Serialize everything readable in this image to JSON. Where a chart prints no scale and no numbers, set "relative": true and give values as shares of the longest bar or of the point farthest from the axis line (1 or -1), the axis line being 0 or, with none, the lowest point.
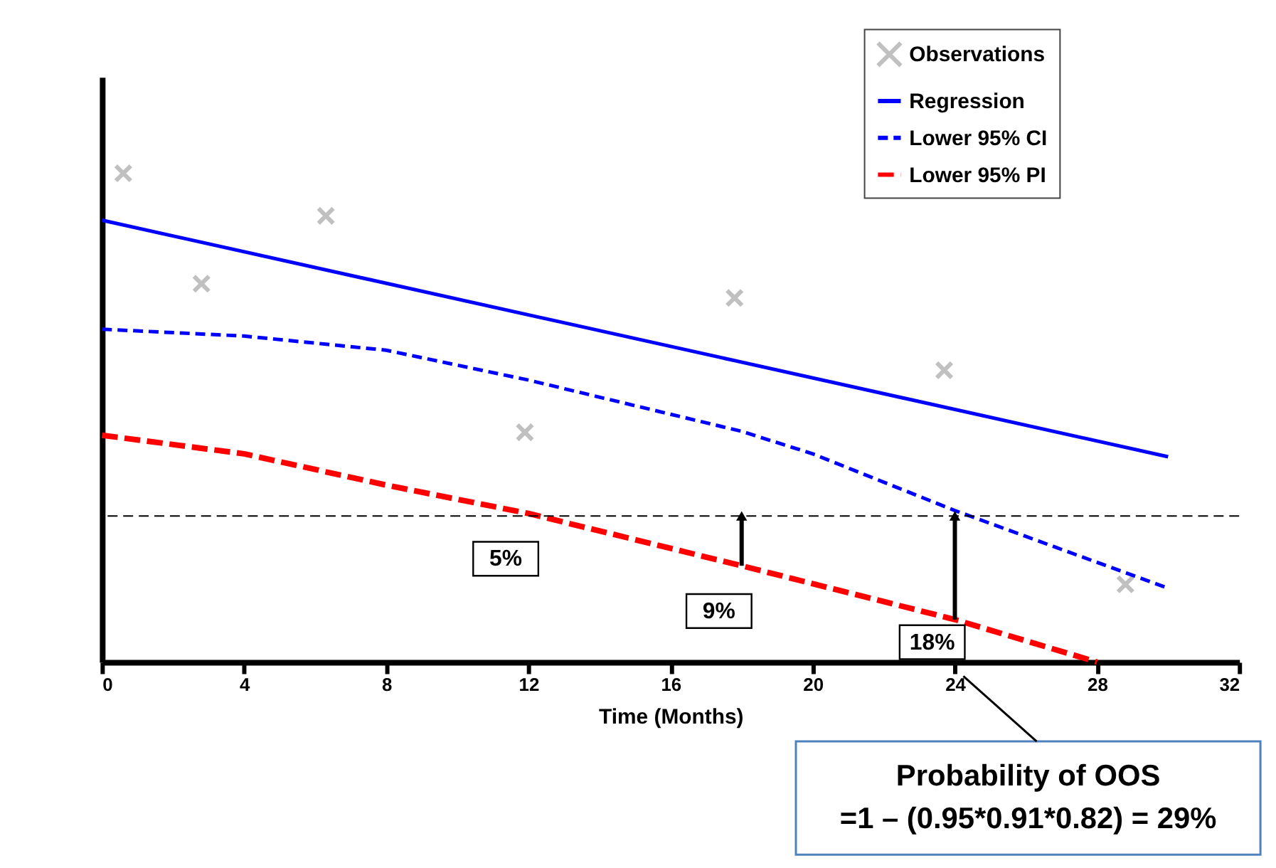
{
  "chart_data": {
    "type": "line",
    "relative": true,
    "xlabel": "Time (Months)",
    "xlim": [
      0,
      32
    ],
    "xticks": [
      0,
      4,
      8,
      12,
      16,
      20,
      24,
      28,
      32
    ],
    "legend": "top right",
    "grid": false,
    "series": [
      {
        "name": "Observations",
        "type": "scatter",
        "marker": "cross",
        "color": "#c0c0c0",
        "x": [
          0.6,
          2.8,
          6.3,
          11.9,
          17.8,
          23.7,
          28.8
        ],
        "values": [
          1.0,
          0.774,
          0.913,
          0.47,
          0.745,
          0.597,
          0.159
        ]
      },
      {
        "name": "Regression",
        "type": "line",
        "line_style": "solid",
        "color": "#0000ff",
        "x": [
          0,
          30
        ],
        "values": [
          0.904,
          0.42
        ]
      },
      {
        "name": "Lower 95% CI",
        "type": "line",
        "line_style": "dashed",
        "color": "#0000ff",
        "x": [
          0,
          4,
          8,
          12,
          16,
          18,
          20,
          24,
          30
        ],
        "values": [
          0.681,
          0.667,
          0.638,
          0.577,
          0.507,
          0.472,
          0.426,
          0.31,
          0.151
        ]
      },
      {
        "name": "Lower 95% PI",
        "type": "line",
        "line_style": "dashed",
        "color": "#ff0000",
        "x": [
          0,
          4,
          8,
          12,
          18,
          24,
          28
        ],
        "values": [
          0.464,
          0.426,
          0.362,
          0.304,
          0.197,
          0.087,
          0.0
        ]
      }
    ],
    "ref_lines": [
      {
        "axis": "y",
        "value": 0.299,
        "color": "#000000",
        "line_style": "dashed"
      }
    ],
    "annotations": [
      {
        "text": "5%",
        "x": 12,
        "y": 0.304
      },
      {
        "text": "9%",
        "x": 18,
        "y": 0.197
      },
      {
        "text": "18%",
        "x": 24,
        "y": 0.087
      },
      "Probability of OOS",
      "=1 – (0.95*0.91*0.82) = 29%"
    ]
  }
}
